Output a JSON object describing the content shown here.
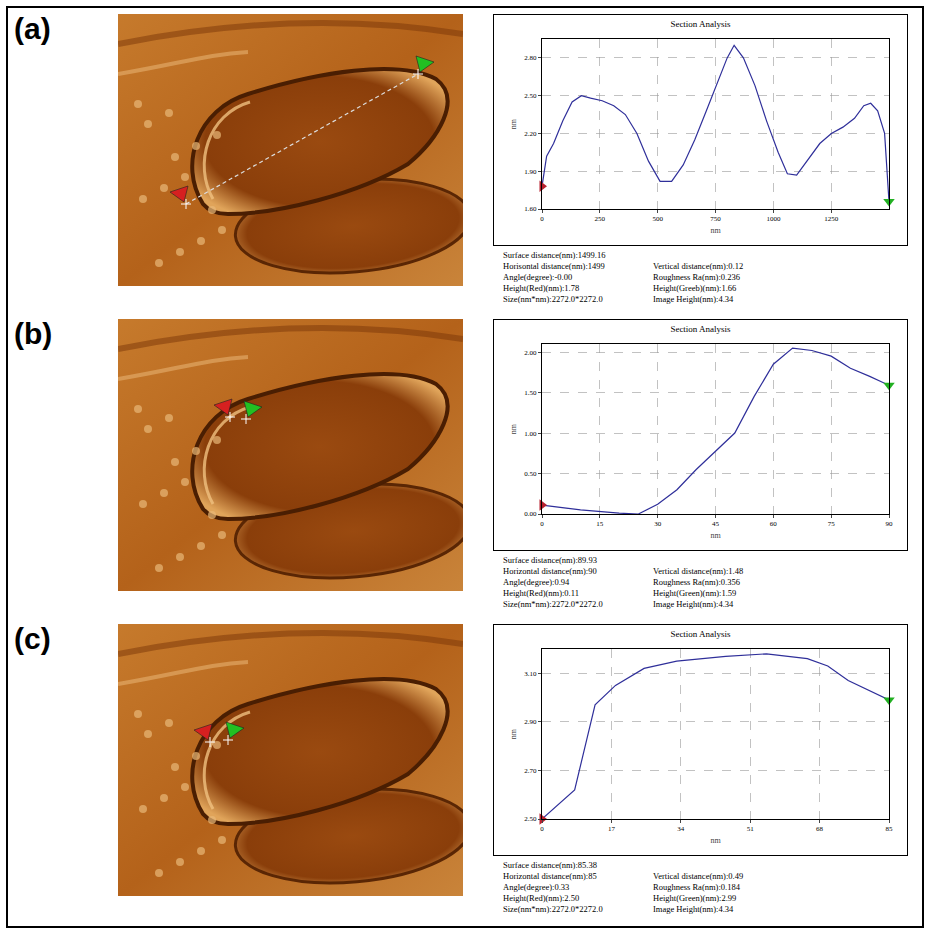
{
  "chart_data": [
    {
      "panel": "(a)",
      "type": "line",
      "title": "Section Analysis",
      "x_label": "nm",
      "y_label": "nm",
      "color": "#2f2f9a",
      "grid": true,
      "x": [
        0,
        20,
        50,
        90,
        130,
        170,
        210,
        260,
        310,
        360,
        410,
        460,
        510,
        560,
        610,
        660,
        710,
        760,
        800,
        830,
        870,
        920,
        970,
        1020,
        1060,
        1100,
        1150,
        1200,
        1250,
        1300,
        1350,
        1390,
        1420,
        1450,
        1480,
        1499
      ],
      "values": [
        1.78,
        2.02,
        2.12,
        2.3,
        2.45,
        2.5,
        2.48,
        2.46,
        2.42,
        2.35,
        2.2,
        1.98,
        1.82,
        1.82,
        1.95,
        2.15,
        2.38,
        2.62,
        2.8,
        2.9,
        2.8,
        2.58,
        2.3,
        2.05,
        1.88,
        1.87,
        2.0,
        2.12,
        2.2,
        2.25,
        2.32,
        2.42,
        2.44,
        2.38,
        2.2,
        1.66
      ],
      "xlim": [
        0,
        1499
      ],
      "xticks": [
        0,
        250,
        500,
        750,
        1000,
        1250
      ],
      "ylim": [
        1.6,
        2.95
      ],
      "yticks": [
        {
          "value": 1.6,
          "label": "1.60"
        },
        {
          "value": 1.9,
          "label": "1.90"
        },
        {
          "value": 2.2,
          "label": "2.20"
        },
        {
          "value": 2.5,
          "label": "2.50"
        },
        {
          "value": 2.8,
          "label": "2.80"
        }
      ],
      "annotations": [
        [
          "Surface distance(nm):1499.16"
        ],
        [
          "Horisontal distance(nm):1499",
          "Vertical distance(nm):0.12"
        ],
        [
          "Angle(degree):-0.00",
          "Roughness Ra(nm):0.236"
        ],
        [
          "Height(Red)(nm):1.78",
          "Height(Greeb)(nm):1.66"
        ],
        [
          "Size(nm*nm):2272.0*2272.0",
          "Image Height(nm):4.34"
        ]
      ]
    },
    {
      "panel": "(b)",
      "type": "line",
      "title": "Section Analysis",
      "x_label": "nm",
      "y_label": "nm",
      "color": "#2f2f9a",
      "grid": true,
      "x": [
        0,
        10,
        20,
        25,
        30,
        35,
        40,
        45,
        50,
        55,
        60,
        65,
        70,
        75,
        80,
        85,
        90
      ],
      "values": [
        0.11,
        0.05,
        0.01,
        0.0,
        0.12,
        0.3,
        0.55,
        0.78,
        1.0,
        1.45,
        1.85,
        2.05,
        2.02,
        1.95,
        1.8,
        1.7,
        1.59
      ],
      "xlim": [
        0,
        90
      ],
      "xticks": [
        0,
        15,
        30,
        45,
        60,
        75,
        90
      ],
      "ylim": [
        0,
        2.1
      ],
      "yticks": [
        {
          "value": 0,
          "label": "0.00"
        },
        {
          "value": 0.5,
          "label": "0.50"
        },
        {
          "value": 1,
          "label": "1.00"
        },
        {
          "value": 1.5,
          "label": "1.50"
        },
        {
          "value": 2,
          "label": "2.00"
        }
      ],
      "annotations": [
        [
          "Surface distance(nm):89.93"
        ],
        [
          "Horizontal distance(nm):90",
          "Vertical distance(nm):1.48"
        ],
        [
          "Angle(degree):0.94",
          "Roughness Ra(nm):0.356"
        ],
        [
          "Height(Red)(nm):0.11",
          "Height(Green)(nm):1.59"
        ],
        [
          "Size(nm*nm):2272.0*2272.0",
          "Image Height(nm):4.34"
        ]
      ]
    },
    {
      "panel": "(c)",
      "type": "line",
      "title": "Section Analysis",
      "x_label": "nm",
      "y_label": "nm",
      "color": "#2f2f9a",
      "grid": true,
      "x": [
        0,
        8,
        13,
        18,
        25,
        33,
        45,
        55,
        65,
        70,
        75,
        85
      ],
      "values": [
        2.5,
        2.62,
        2.97,
        3.05,
        3.12,
        3.15,
        3.17,
        3.18,
        3.16,
        3.13,
        3.07,
        2.99
      ],
      "xlim": [
        0,
        85
      ],
      "xticks": [
        0,
        17,
        34,
        51,
        68,
        85
      ],
      "ylim": [
        2.5,
        3.2
      ],
      "yticks": [
        {
          "value": 2.5,
          "label": "2.50"
        },
        {
          "value": 2.7,
          "label": "2.70"
        },
        {
          "value": 2.9,
          "label": "2.90"
        },
        {
          "value": 3.1,
          "label": "3.10"
        }
      ],
      "annotations": [
        [
          "Surface distance(nm):85.38"
        ],
        [
          "Horizontal distance(nm):85",
          "Vertical distance(nm):0.49"
        ],
        [
          "Angle(degree):0.33",
          "Roughness Ra(nm):0.184"
        ],
        [
          "Height(Red)(nm):2.50",
          "Height(Green)(nm):2.99"
        ],
        [
          "Size(nm*nm):2272.0*2272.0",
          "Image Height(nm):4.34"
        ]
      ]
    }
  ]
}
